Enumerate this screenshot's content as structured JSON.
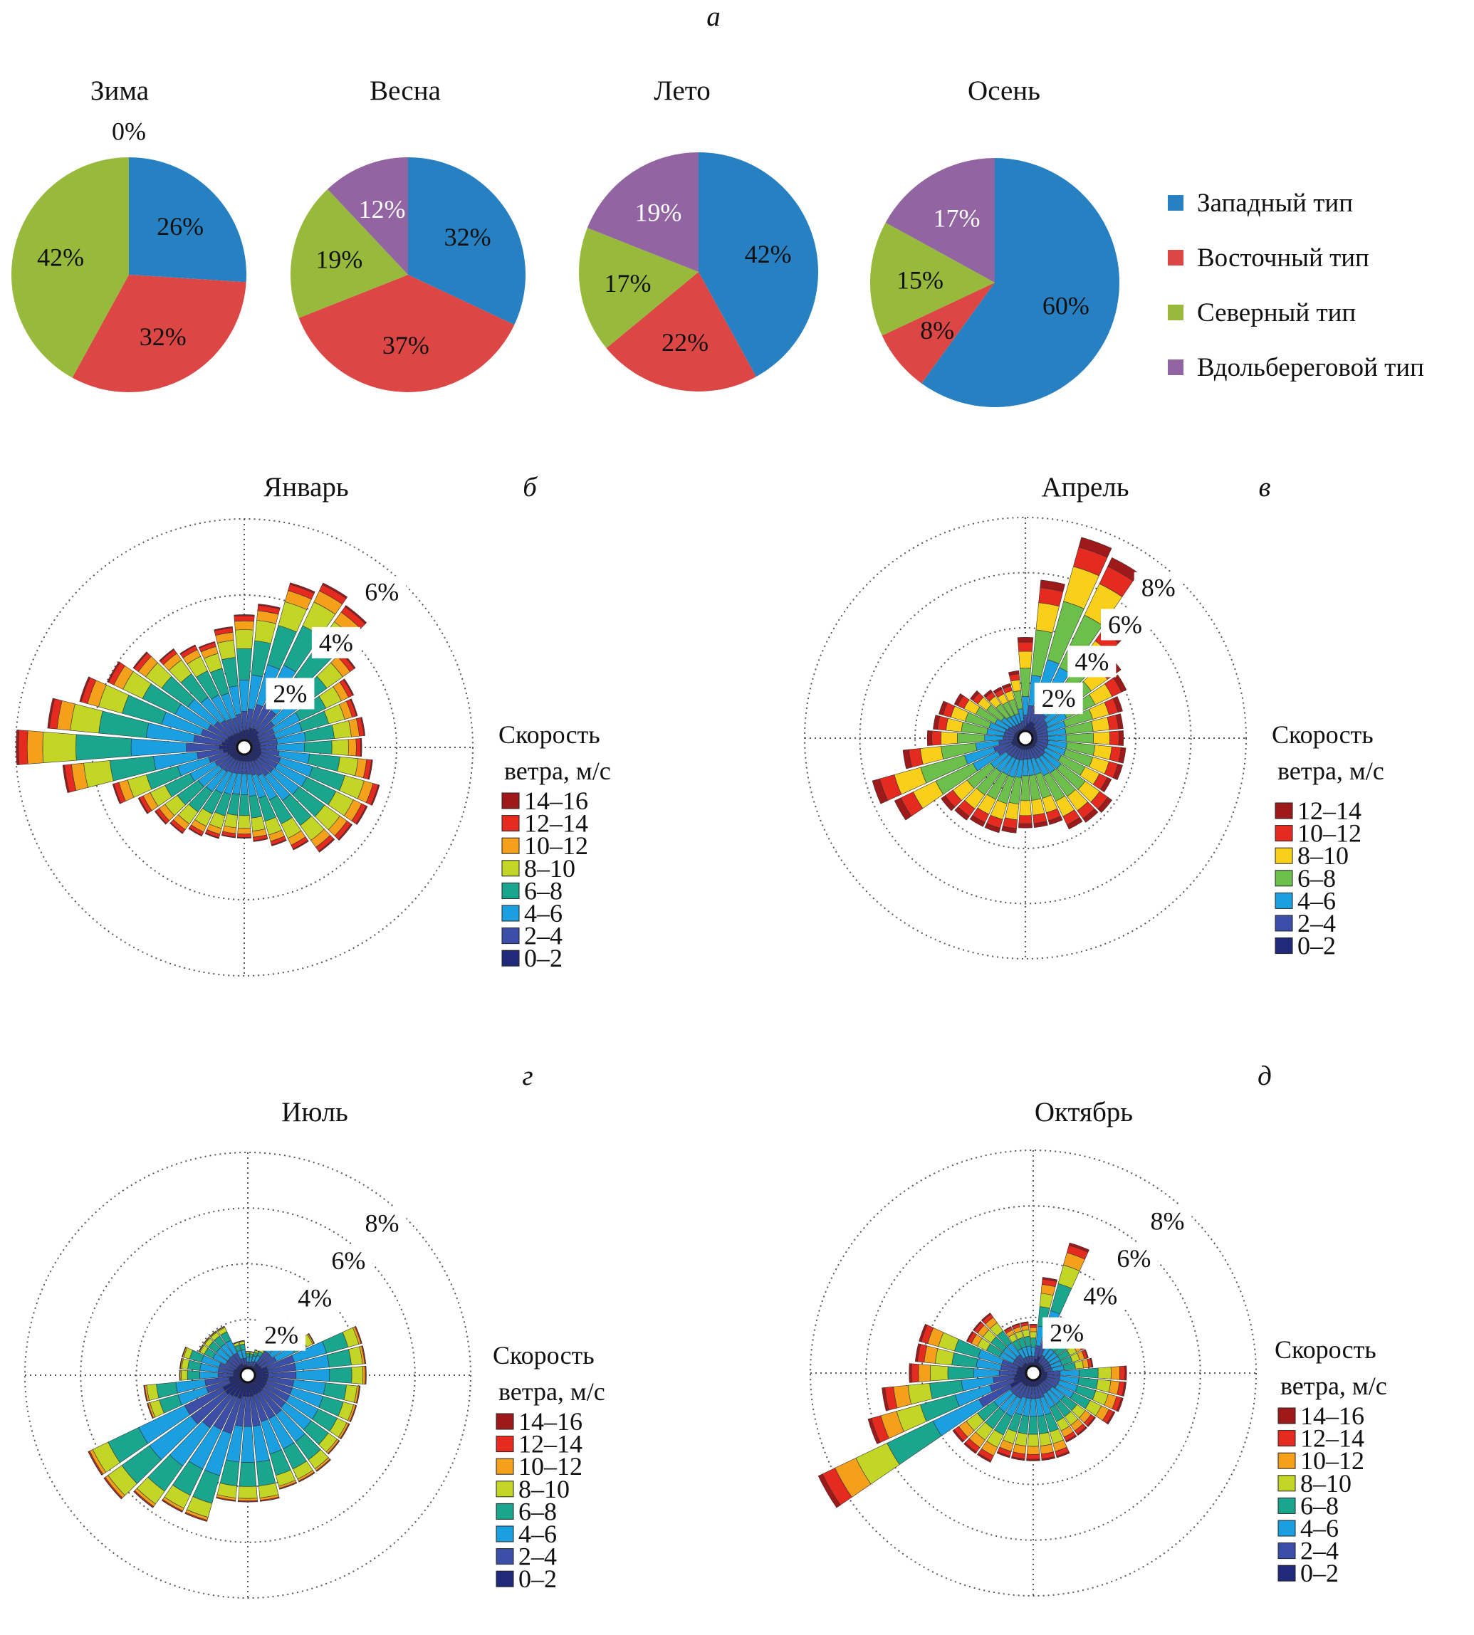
{
  "panel_labels": {
    "a": "а",
    "b": "б",
    "v": "в",
    "g": "г",
    "d": "д"
  },
  "chart_data": [
    {
      "type": "pie",
      "title": "Зима",
      "categories": [
        "Западный тип",
        "Восточный тип",
        "Северный тип",
        "Вдольбереговой тип"
      ],
      "values": [
        26,
        32,
        42,
        0
      ],
      "labels": [
        "26%",
        "32%",
        "42%",
        "0%"
      ]
    },
    {
      "type": "pie",
      "title": "Весна",
      "categories": [
        "Западный тип",
        "Восточный тип",
        "Северный тип",
        "Вдольбереговой тип"
      ],
      "values": [
        32,
        37,
        19,
        12
      ],
      "labels": [
        "32%",
        "37%",
        "19%",
        "12%"
      ]
    },
    {
      "type": "pie",
      "title": "Лето",
      "categories": [
        "Западный тип",
        "Восточный тип",
        "Северный тип",
        "Вдольбереговой тип"
      ],
      "values": [
        42,
        22,
        17,
        19
      ],
      "labels": [
        "42%",
        "22%",
        "17%",
        "19%"
      ]
    },
    {
      "type": "pie",
      "title": "Осень",
      "categories": [
        "Западный тип",
        "Восточный тип",
        "Северный тип",
        "Вдольбереговой тип"
      ],
      "values": [
        60,
        8,
        15,
        17
      ],
      "labels": [
        "60%",
        "8%",
        "15%",
        "17%"
      ]
    },
    {
      "type": "windrose",
      "title": "Январь",
      "panel": "б",
      "rings": [
        "2%",
        "4%",
        "6%"
      ],
      "ring_values": [
        2,
        4,
        6
      ],
      "rmax": 6,
      "legend_title": [
        "Скорость",
        "ветра, м/с"
      ],
      "speed_bins": [
        "14–16",
        "12–14",
        "10–12",
        "8–10",
        "6–8",
        "4–6",
        "2–4",
        "0–2"
      ],
      "bin_colors": [
        "#9e1a1a",
        "#e52a20",
        "#f5a01a",
        "#c3d626",
        "#1aa58f",
        "#1aa0e0",
        "#3b4fa8",
        "#1f2a7a"
      ],
      "bin_shares": [
        0.01,
        0.04,
        0.07,
        0.15,
        0.25,
        0.25,
        0.15,
        0.08
      ],
      "directions_deg_step": 10,
      "totals": [
        3.3,
        3.6,
        4.3,
        4.6,
        4.4,
        3.4,
        3.0,
        2.9,
        3.0,
        2.9,
        3.2,
        3.5,
        3.4,
        3.3,
        3.2,
        2.8,
        2.5,
        2.3,
        2.2,
        2.2,
        2.3,
        2.4,
        2.6,
        2.7,
        2.9,
        3.4,
        4.6,
        5.8,
        5.0,
        4.3,
        3.8,
        3.4,
        3.0,
        2.8,
        2.7,
        3.0
      ]
    },
    {
      "type": "windrose",
      "title": "Апрель",
      "panel": "в",
      "rings": [
        "2%",
        "4%",
        "6%",
        "8%"
      ],
      "ring_values": [
        2,
        4,
        6,
        8
      ],
      "rmax": 8,
      "legend_title": [
        "Скорость",
        "ветра, м/с"
      ],
      "speed_bins": [
        "12–14",
        "10–12",
        "8–10",
        "6–8",
        "4–6",
        "2–4",
        "0–2"
      ],
      "bin_colors": [
        "#9e1a1a",
        "#e52a20",
        "#f8d01a",
        "#6cbf4a",
        "#1aa0e0",
        "#3b4fa8",
        "#1f2a7a"
      ],
      "bin_shares": [
        0.05,
        0.1,
        0.18,
        0.3,
        0.2,
        0.12,
        0.05
      ],
      "directions_deg_step": 10,
      "totals": [
        3.4,
        5.5,
        7.3,
        7.0,
        4.8,
        4.0,
        3.8,
        3.4,
        3.3,
        3.3,
        3.4,
        3.4,
        3.2,
        3.6,
        3.5,
        3.4,
        3.0,
        3.0,
        3.0,
        3.2,
        3.3,
        3.3,
        3.4,
        3.5,
        5.0,
        5.5,
        4.2,
        3.3,
        3.1,
        3.0,
        2.6,
        2.2,
        1.9,
        1.8,
        1.8,
        2.2
      ]
    },
    {
      "type": "windrose",
      "title": "Июль",
      "panel": "г",
      "rings": [
        "2%",
        "4%",
        "6%",
        "8%"
      ],
      "ring_values": [
        2,
        4,
        6,
        8
      ],
      "rmax": 8,
      "legend_title": [
        "Скорость",
        "ветра, м/с"
      ],
      "speed_bins": [
        "14–16",
        "12–14",
        "10–12",
        "8–10",
        "6–8",
        "4–6",
        "2–4",
        "0–2"
      ],
      "bin_colors": [
        "#9e1a1a",
        "#e52a20",
        "#f5a01a",
        "#c3d626",
        "#1aa58f",
        "#1aa0e0",
        "#3b4fa8",
        "#1f2a7a"
      ],
      "bin_shares": [
        0.002,
        0.008,
        0.02,
        0.1,
        0.2,
        0.3,
        0.25,
        0.12
      ],
      "directions_deg_step": 10,
      "totals": [
        0.6,
        0.6,
        0.7,
        0.8,
        2.2,
        2.2,
        2.4,
        4.0,
        4.0,
        4.0,
        3.8,
        3.8,
        3.8,
        3.8,
        4.0,
        4.0,
        4.0,
        4.3,
        4.3,
        4.3,
        5.2,
        5.2,
        5.6,
        6.1,
        6.1,
        3.5,
        3.5,
        2.2,
        2.2,
        2.2,
        1.7,
        1.7,
        1.7,
        1.7,
        1.0,
        1.0
      ]
    },
    {
      "type": "windrose",
      "title": "Октябрь",
      "panel": "д",
      "rings": [
        "2%",
        "4%",
        "6%",
        "8%"
      ],
      "ring_values": [
        2,
        4,
        6,
        8
      ],
      "rmax": 8,
      "legend_title": [
        "Скорость",
        "ветра, м/с"
      ],
      "speed_bins": [
        "14–16",
        "12–14",
        "10–12",
        "8–10",
        "6–8",
        "4–6",
        "2–4",
        "0–2"
      ],
      "bin_colors": [
        "#9e1a1a",
        "#e52a20",
        "#f5a01a",
        "#c3d626",
        "#1aa58f",
        "#1aa0e0",
        "#3b4fa8",
        "#1f2a7a"
      ],
      "bin_shares": [
        0.02,
        0.06,
        0.1,
        0.15,
        0.22,
        0.22,
        0.15,
        0.08
      ],
      "directions_deg_step": 10,
      "totals": [
        1.5,
        3.2,
        4.6,
        2.0,
        1.8,
        1.8,
        1.8,
        1.8,
        1.9,
        3.1,
        3.1,
        3.1,
        3.0,
        2.5,
        2.5,
        2.5,
        2.9,
        2.9,
        2.9,
        2.9,
        2.9,
        3.3,
        3.3,
        3.3,
        8.3,
        5.9,
        5.2,
        4.2,
        4.0,
        4.0,
        2.4,
        2.4,
        2.4,
        1.6,
        1.6,
        1.6
      ]
    }
  ],
  "pie_colors": [
    "#2680c2",
    "#dc4644",
    "#97ba3c",
    "#9264a2"
  ],
  "pie_legend": [
    "Западный тип",
    "Восточный тип",
    "Северный тип",
    "Вдольбереговой тип"
  ]
}
